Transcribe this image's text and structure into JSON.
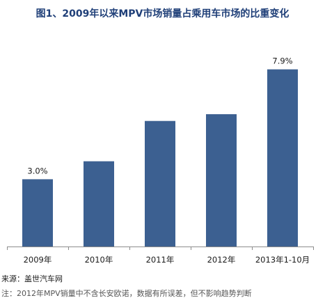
{
  "colors": {
    "bar": "#3c6091",
    "title": "#1f3f78",
    "axis": "#8c8c8c",
    "text": "#1a1a1a"
  },
  "chart_data": {
    "type": "bar",
    "title": "图1、2009年以来MPV市场销量占乘用车市场的比重变化",
    "xlabel": "",
    "ylabel": "",
    "categories": [
      "2009年",
      "2010年",
      "2011年",
      "2012年",
      "2013年1-10月"
    ],
    "values": [
      3.0,
      3.8,
      5.6,
      5.9,
      7.9
    ],
    "data_labels": [
      "3.0%",
      "",
      "",
      "",
      "7.9%"
    ],
    "ylim": [
      0,
      9
    ],
    "grid": false,
    "legend": "none"
  },
  "source": "来源：盖世汽车网",
  "note": "注：2012年MPV销量中不含长安欧诺，数据有所误差，但不影响趋势判断"
}
